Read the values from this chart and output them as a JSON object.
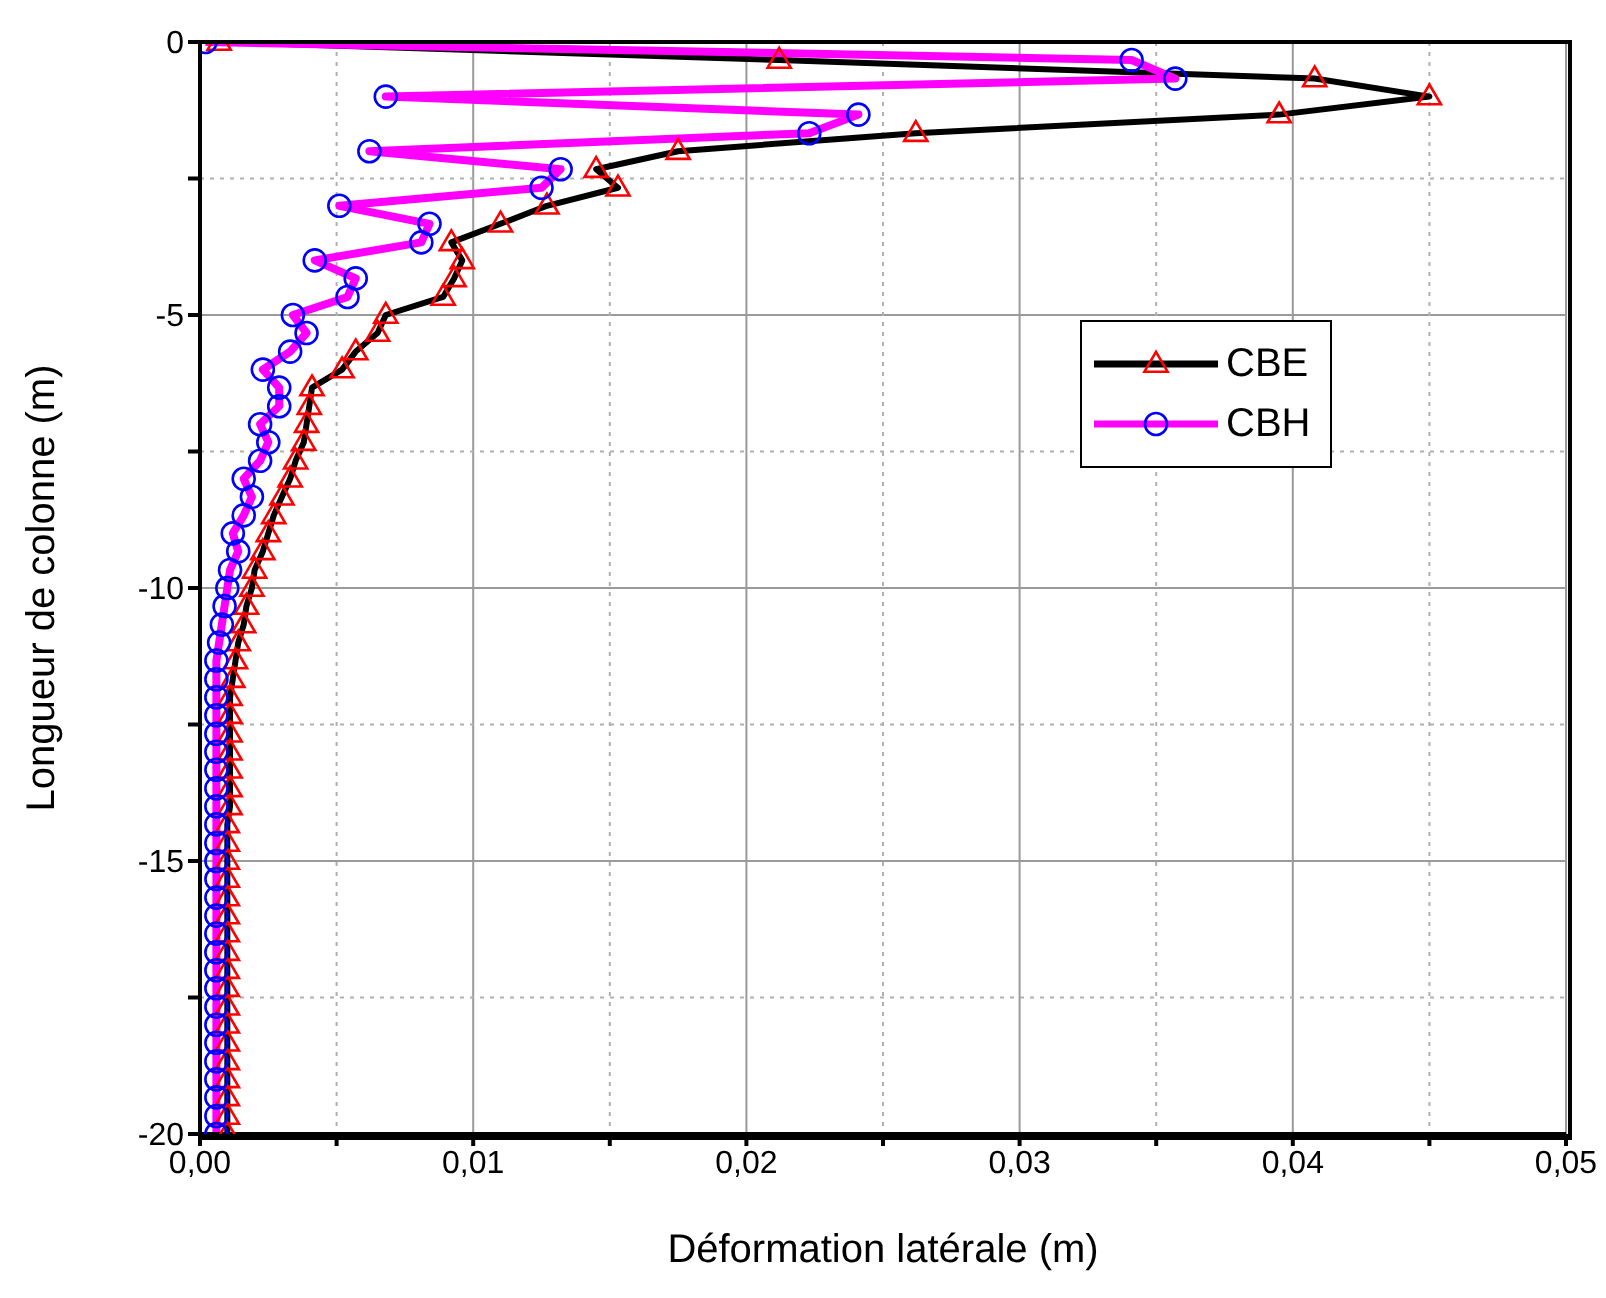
{
  "chart_data": {
    "type": "line",
    "xlabel": "Déformation latérale (m)",
    "ylabel": "Longueur de colonne (m)",
    "xlim": [
      0,
      0.05
    ],
    "ylim": [
      -20,
      0
    ],
    "xticks": [
      {
        "value": 0,
        "label": "0,00"
      },
      {
        "value": 0.005,
        "label": null
      },
      {
        "value": 0.01,
        "label": "0,01"
      },
      {
        "value": 0.015,
        "label": null
      },
      {
        "value": 0.02,
        "label": "0,02"
      },
      {
        "value": 0.025,
        "label": null
      },
      {
        "value": 0.03,
        "label": "0,03"
      },
      {
        "value": 0.035,
        "label": null
      },
      {
        "value": 0.04,
        "label": "0,04"
      },
      {
        "value": 0.045,
        "label": null
      },
      {
        "value": 0.05,
        "label": "0,05"
      }
    ],
    "yticks": [
      -20,
      {
        "value": -17.5,
        "label": null
      },
      -15,
      {
        "value": -12.5,
        "label": null
      },
      -10,
      {
        "value": -7.5,
        "label": null
      },
      -5,
      {
        "value": -2.5,
        "label": null
      },
      0
    ],
    "grid": true,
    "legend": "right",
    "line_style": "solid",
    "series": [
      {
        "name": "CBE",
        "color": "#000000",
        "marker": "triangle",
        "x": [
          0.0007,
          0.0212,
          0.0408,
          0.045,
          0.0395,
          0.0262,
          0.0175,
          0.0145,
          0.0153,
          0.0127,
          0.011,
          0.0092,
          0.0096,
          0.0093,
          0.0089,
          0.0068,
          0.0065,
          0.0057,
          0.0052,
          0.0041,
          0.004,
          0.0039,
          0.0038,
          0.0035,
          0.0033,
          0.003,
          0.0027,
          0.0025,
          0.0023,
          0.002,
          0.0019,
          0.0017,
          0.0016,
          0.0014,
          0.0013,
          0.0012,
          0.0011,
          0.0011,
          0.0011,
          0.0011,
          0.0011,
          0.0011,
          0.0011,
          0.001,
          0.001,
          0.001,
          0.001,
          0.001,
          0.001,
          0.001,
          0.001,
          0.001,
          0.001,
          0.001,
          0.001,
          0.001,
          0.001,
          0.001,
          0.001,
          0.001,
          0.001
        ],
        "values": [
          0,
          -0.33,
          -0.67,
          -1,
          -1.33,
          -1.67,
          -2,
          -2.33,
          -2.67,
          -3,
          -3.33,
          -3.67,
          -4,
          -4.33,
          -4.67,
          -5,
          -5.33,
          -5.67,
          -6,
          -6.33,
          -6.67,
          -7,
          -7.33,
          -7.67,
          -8,
          -8.33,
          -8.67,
          -9,
          -9.33,
          -9.67,
          -10,
          -10.33,
          -10.67,
          -11,
          -11.33,
          -11.67,
          -12,
          -12.33,
          -12.67,
          -13,
          -13.33,
          -13.67,
          -14,
          -14.33,
          -14.67,
          -15,
          -15.33,
          -15.67,
          -16,
          -16.33,
          -16.67,
          -17,
          -17.33,
          -17.67,
          -18,
          -18.33,
          -18.67,
          -19,
          -19.33,
          -19.67,
          -20
        ]
      },
      {
        "name": "CBH",
        "color": "#ff00ff",
        "marker": "circle",
        "x": [
          0.0002,
          0.0341,
          0.0357,
          0.0068,
          0.0241,
          0.0223,
          0.0062,
          0.0132,
          0.0125,
          0.0051,
          0.0084,
          0.0081,
          0.0042,
          0.0057,
          0.0054,
          0.0034,
          0.0039,
          0.0033,
          0.0023,
          0.0029,
          0.0029,
          0.0022,
          0.0025,
          0.0022,
          0.0016,
          0.0019,
          0.0016,
          0.0012,
          0.0014,
          0.0011,
          0.001,
          0.0009,
          0.0008,
          0.0007,
          0.0006,
          0.0006,
          0.0006,
          0.0006,
          0.0006,
          0.0006,
          0.0006,
          0.0006,
          0.0006,
          0.0006,
          0.0006,
          0.0006,
          0.0006,
          0.0006,
          0.0006,
          0.0006,
          0.0006,
          0.0006,
          0.0006,
          0.0006,
          0.0006,
          0.0006,
          0.0006,
          0.0006,
          0.0006,
          0.0006,
          0.0006
        ],
        "values": [
          0,
          -0.33,
          -0.67,
          -1,
          -1.33,
          -1.67,
          -2,
          -2.33,
          -2.67,
          -3,
          -3.33,
          -3.67,
          -4,
          -4.33,
          -4.67,
          -5,
          -5.33,
          -5.67,
          -6,
          -6.33,
          -6.67,
          -7,
          -7.33,
          -7.67,
          -8,
          -8.33,
          -8.67,
          -9,
          -9.33,
          -9.67,
          -10,
          -10.33,
          -10.67,
          -11,
          -11.33,
          -11.67,
          -12,
          -12.33,
          -12.67,
          -13,
          -13.33,
          -13.67,
          -14,
          -14.33,
          -14.67,
          -15,
          -15.33,
          -15.67,
          -16,
          -16.33,
          -16.67,
          -17,
          -17.33,
          -17.67,
          -18,
          -18.33,
          -18.67,
          -19,
          -19.33,
          -19.67,
          -20
        ]
      }
    ]
  }
}
